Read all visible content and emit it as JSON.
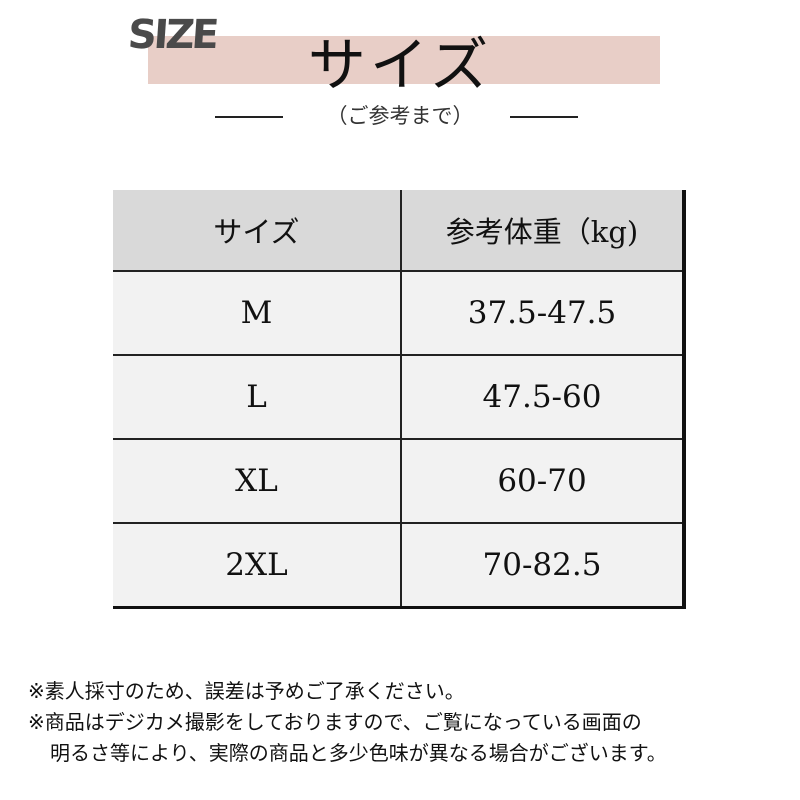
{
  "header": {
    "logo_text": "SIZE",
    "title": "サイズ",
    "subtitle": "（ご参考まで）",
    "accent_color": "#e8cec7"
  },
  "table": {
    "headers": [
      "サイズ",
      "参考体重（kg)"
    ],
    "rows": [
      [
        "M",
        "37.5-47.5"
      ],
      [
        "L",
        "47.5-60"
      ],
      [
        "XL",
        "60-70"
      ],
      [
        "2XL",
        "70-82.5"
      ]
    ]
  },
  "notes": [
    "※素人採寸のため、誤差は予めご了承ください。",
    "※商品はデジカメ撮影をしておりますので、ご覧になっている画面の",
    "明るさ等により、実際の商品と多少色味が異なる場合がございます。"
  ]
}
